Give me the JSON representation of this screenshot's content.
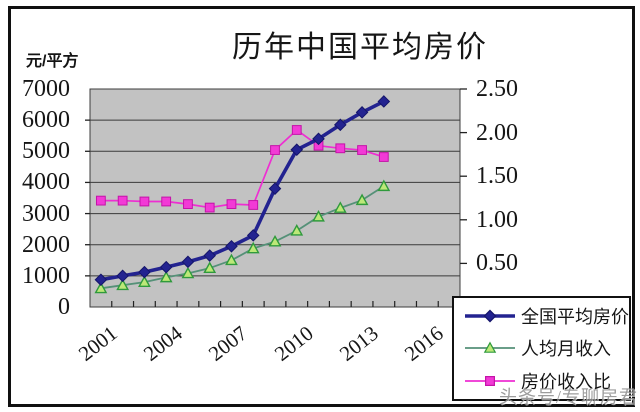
{
  "page": {
    "watermark": "头条号/专聊房君"
  },
  "chart_data": {
    "type": "line",
    "title": "历年中国平均房价",
    "y_left": {
      "label": "元/平方",
      "min": 0,
      "max": 7000,
      "tick_step": 1000,
      "tick_labels": [
        "7000",
        "6000",
        "5000",
        "4000",
        "3000",
        "2000",
        "1000",
        "0"
      ]
    },
    "y_right": {
      "min": 0,
      "max": 2.5,
      "tick_step": 0.5,
      "tick_labels": [
        "2.50",
        "2.00",
        "1.50",
        "1.00",
        "0.50"
      ]
    },
    "x": {
      "start_year": 2001,
      "slots": 17,
      "label_every": 3,
      "tick_labels": [
        "2001",
        "2004",
        "2007",
        "2010",
        "2013",
        "2016"
      ]
    },
    "years": [
      2001,
      2002,
      2003,
      2004,
      2005,
      2006,
      2007,
      2008,
      2009,
      2010,
      2011,
      2012,
      2013,
      2014
    ],
    "series": [
      {
        "name": "全国平均房价",
        "axis": "left",
        "marker": "diamond",
        "color": "#232390",
        "marker_fill": "#232390",
        "marker_stroke": "#15156a",
        "line_width": 3.6,
        "values": [
          875,
          1000,
          1120,
          1280,
          1450,
          1650,
          1950,
          2300,
          3800,
          5050,
          5400,
          5850,
          6250,
          6600
        ]
      },
      {
        "name": "人均月收入",
        "axis": "left",
        "marker": "triangle",
        "color": "#559178",
        "marker_fill": "#bce878",
        "marker_stroke": "#2f9a3c",
        "line_width": 1.8,
        "values": [
          600,
          700,
          800,
          950,
          1080,
          1250,
          1500,
          1880,
          2100,
          2450,
          2900,
          3180,
          3430,
          3880
        ]
      },
      {
        "name": "房价收入比",
        "axis": "right",
        "marker": "square",
        "color": "#ee2ed2",
        "marker_fill": "#f23ad6",
        "marker_stroke": "#c414a8",
        "line_width": 1.7,
        "values": [
          1.22,
          1.22,
          1.21,
          1.21,
          1.18,
          1.14,
          1.18,
          1.17,
          1.8,
          2.03,
          1.85,
          1.82,
          1.8,
          1.72
        ]
      }
    ],
    "grid": true,
    "plot_bg": "#c2c2c2",
    "legend_position": "bottom-right"
  }
}
